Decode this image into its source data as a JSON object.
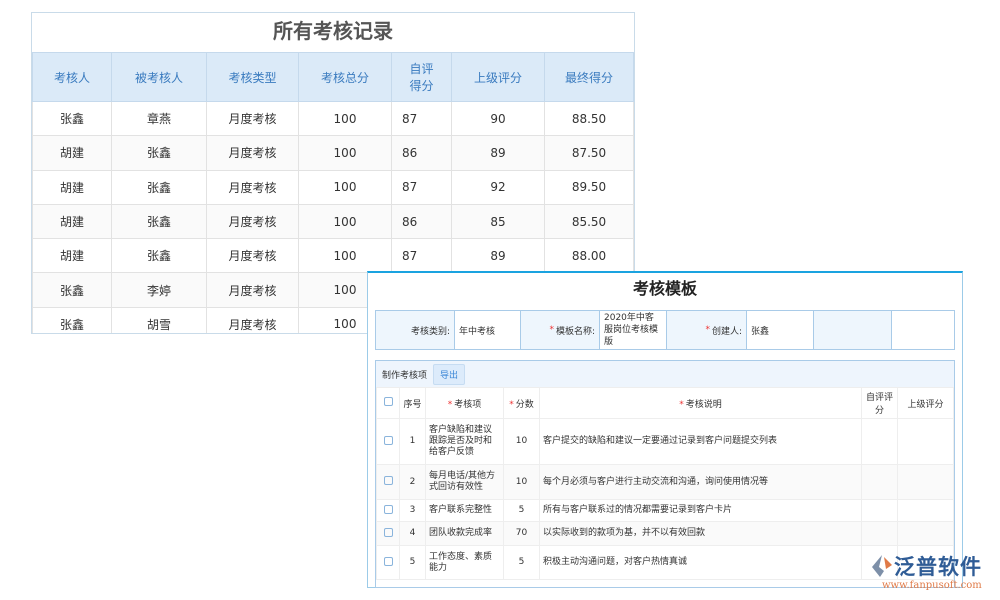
{
  "left": {
    "title": "所有考核记录",
    "headers": [
      "考核人",
      "被考核人",
      "考核类型",
      "考核总分",
      "自评得分",
      "上级评分",
      "最终得分"
    ],
    "rows": [
      [
        "张鑫",
        "章燕",
        "月度考核",
        "100",
        "87",
        "90",
        "88.50"
      ],
      [
        "胡建",
        "张鑫",
        "月度考核",
        "100",
        "86",
        "89",
        "87.50"
      ],
      [
        "胡建",
        "张鑫",
        "月度考核",
        "100",
        "87",
        "92",
        "89.50"
      ],
      [
        "胡建",
        "张鑫",
        "月度考核",
        "100",
        "86",
        "85",
        "85.50"
      ],
      [
        "胡建",
        "张鑫",
        "月度考核",
        "100",
        "87",
        "89",
        "88.00"
      ],
      [
        "张鑫",
        "李婷",
        "月度考核",
        "100",
        "",
        "",
        ""
      ],
      [
        "张鑫",
        "胡雪",
        "月度考核",
        "100",
        "",
        "",
        ""
      ]
    ]
  },
  "right": {
    "title": "考核模板",
    "info": {
      "type_label": "考核类别:",
      "type_value": "年中考核",
      "name_label": "模板名称:",
      "name_value": "2020年中客服岗位考核模版",
      "creator_label": "创建人:",
      "creator_value": "张鑫"
    },
    "toolbar": {
      "label": "制作考核项",
      "export": "导出"
    },
    "headers": [
      "序号",
      "考核项",
      "分数",
      "考核说明",
      "自评评分",
      "上级评分"
    ],
    "rows": [
      [
        "1",
        "客户缺陷和建议跟踪是否及时和给客户反馈",
        "10",
        "客户提交的缺陷和建议一定要通过记录到客户问题提交列表"
      ],
      [
        "2",
        "每月电话/其他方式回访有效性",
        "10",
        "每个月必须与客户进行主动交流和沟通，询问使用情况等"
      ],
      [
        "3",
        "客户联系完整性",
        "5",
        "所有与客户联系过的情况都需要记录到客户卡片"
      ],
      [
        "4",
        "团队收款完成率",
        "70",
        "以实际收到的款项为基，并不以有效回款"
      ],
      [
        "5",
        "工作态度、素质能力",
        "5",
        "积极主动沟通问题，对客户热情真诚"
      ]
    ]
  },
  "logo": {
    "brand": "泛普软件",
    "url": "www.fanpusoft.com"
  }
}
